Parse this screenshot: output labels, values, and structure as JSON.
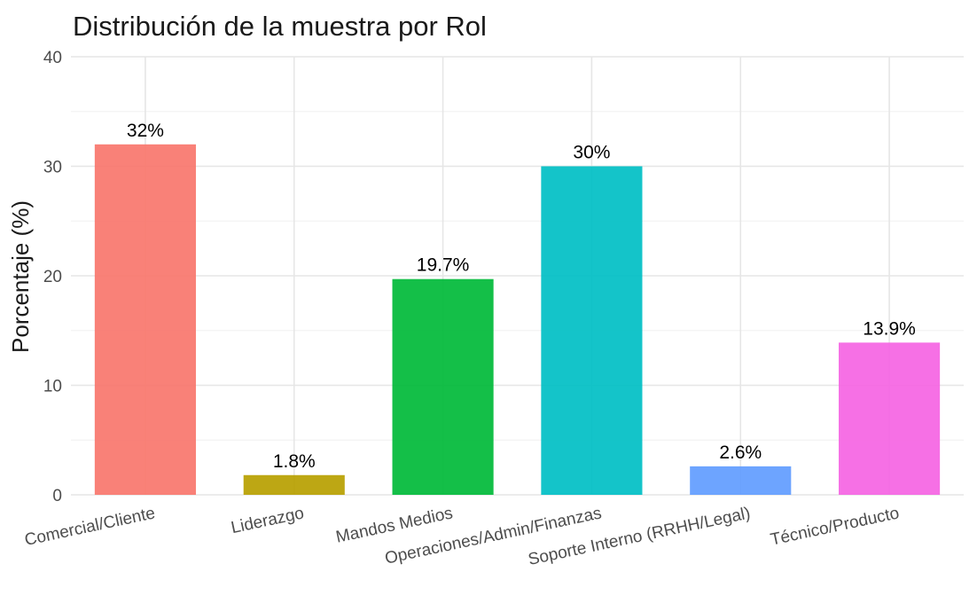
{
  "chart_data": {
    "type": "bar",
    "title": "Distribución de la muestra por Rol",
    "xlabel": "",
    "ylabel": "Porcentaje (%)",
    "ylim": [
      0,
      40
    ],
    "yticks": [
      0,
      10,
      20,
      30,
      40
    ],
    "grid": true,
    "legend": "none",
    "categories": [
      "Comercial/Cliente",
      "Liderazgo",
      "Mandos Medios",
      "Operaciones/Admin/Finanzas",
      "Soporte Interno (RRHH/Legal)",
      "Técnico/Producto"
    ],
    "values": [
      32,
      1.8,
      19.7,
      30,
      2.6,
      13.9
    ],
    "data_labels": [
      "32%",
      "1.8%",
      "19.7%",
      "30%",
      "2.6%",
      "13.9%"
    ],
    "colors": [
      "#F8766D",
      "#B79F00",
      "#00BA38",
      "#00BFC4",
      "#619CFF",
      "#F564E3"
    ]
  }
}
